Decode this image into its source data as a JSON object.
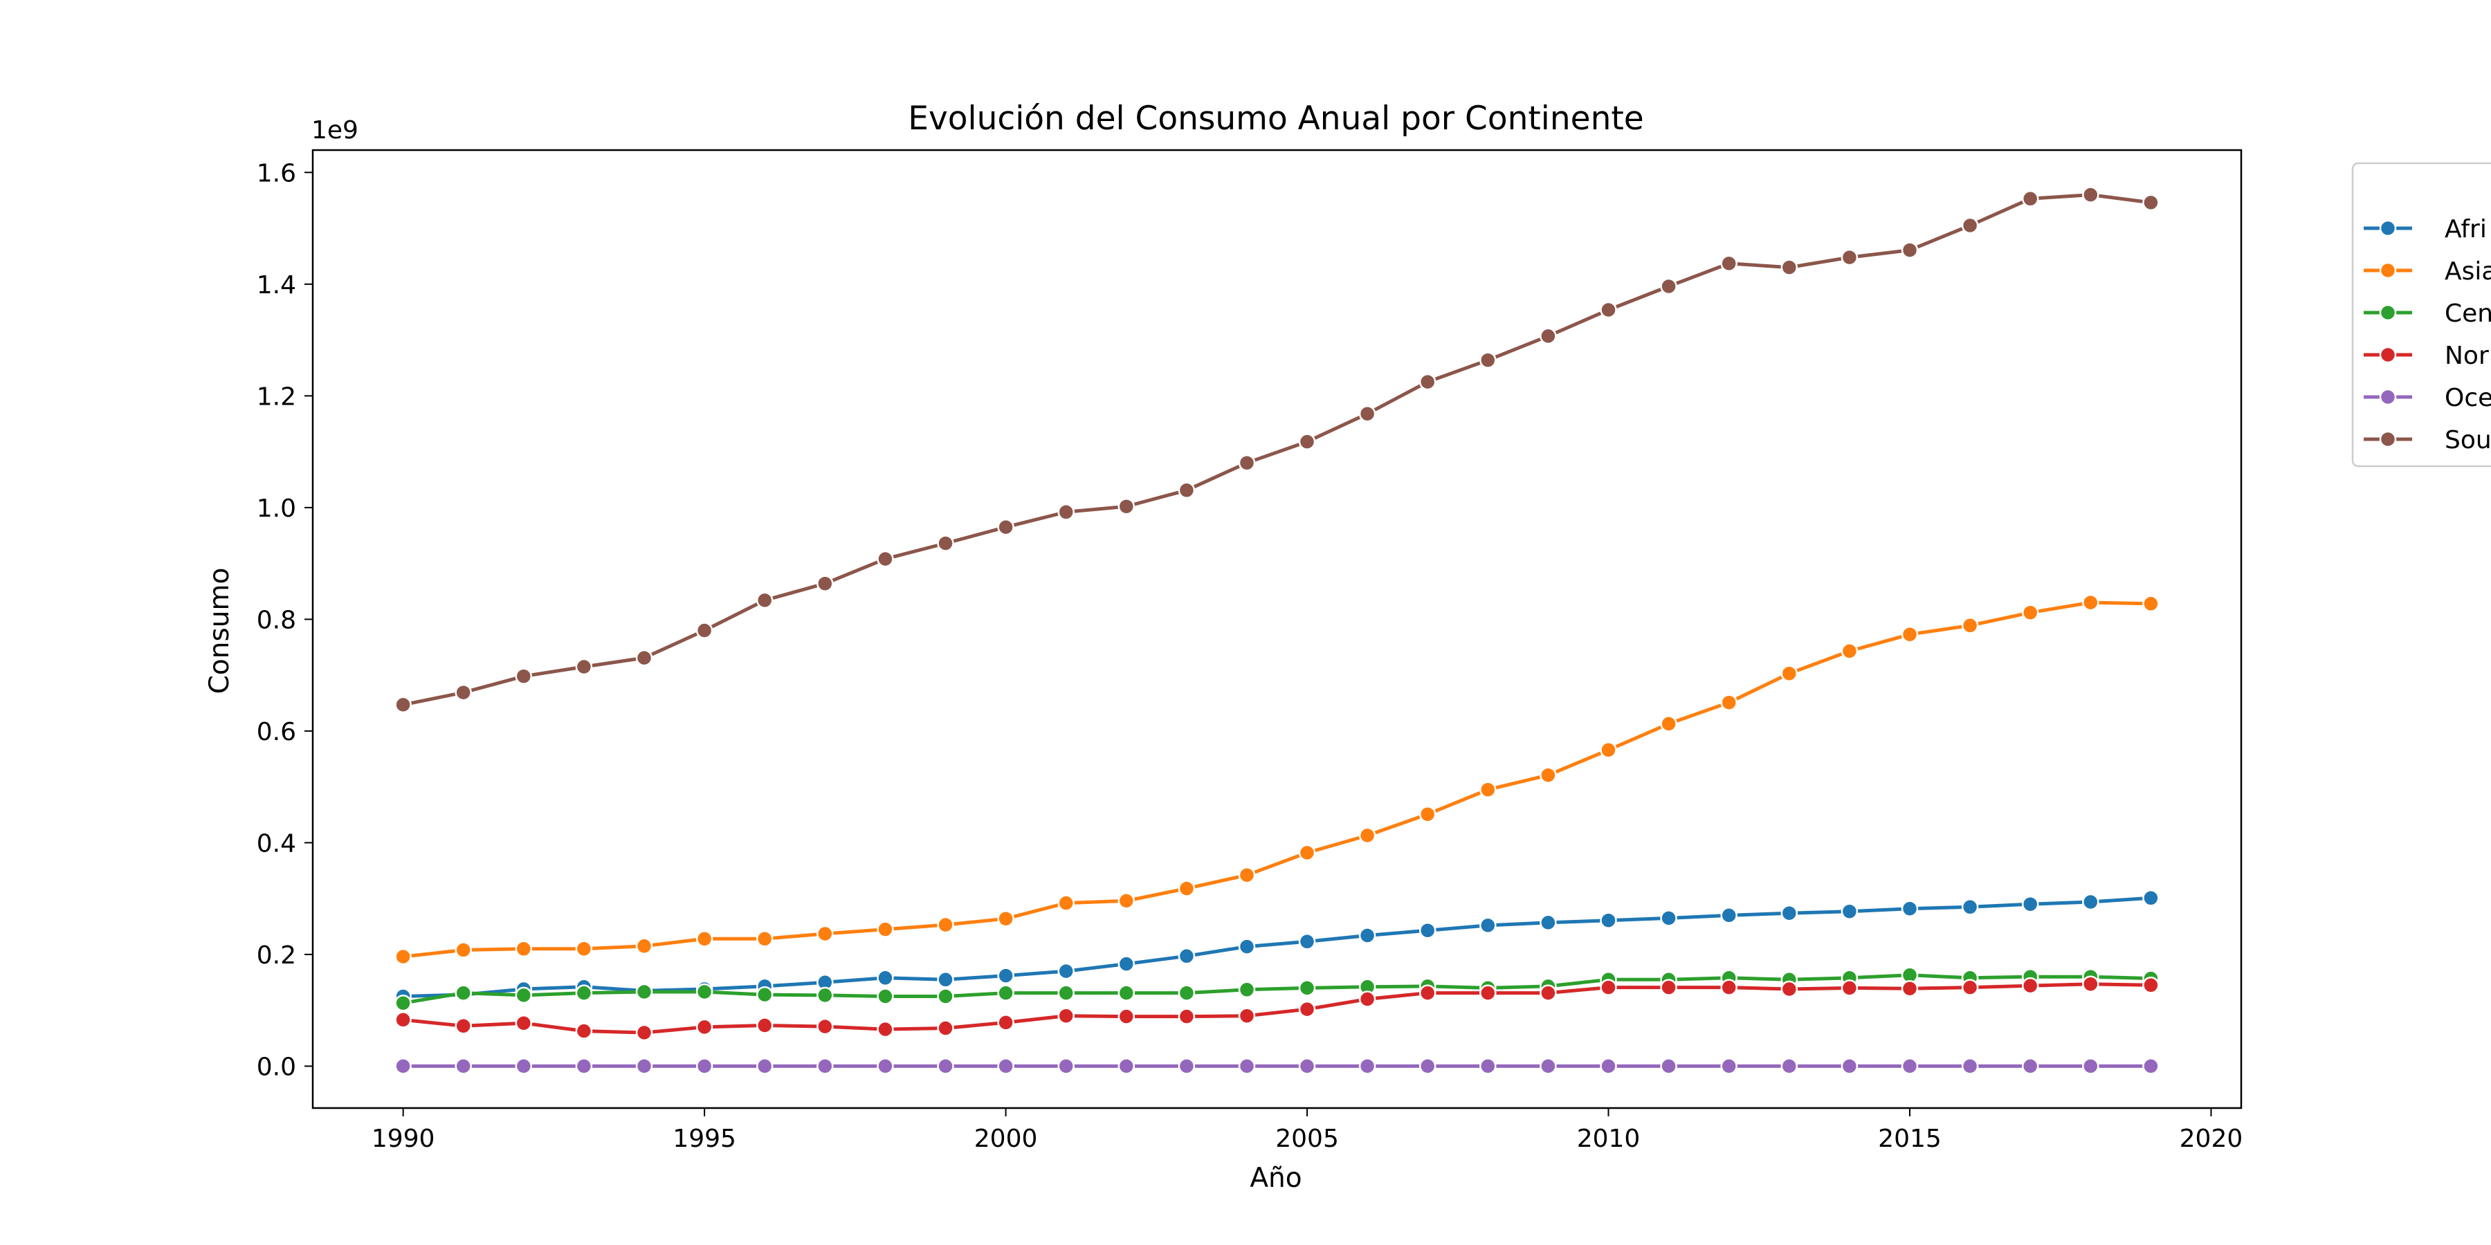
{
  "chart_data": {
    "type": "line",
    "title": "Evolución del Consumo Anual por Continente",
    "xlabel": "Año",
    "ylabel": "Consumo",
    "y_offset_text": "1e9",
    "xlim": [
      1988.5,
      2020.5
    ],
    "ylim": [
      -0.075,
      1.64
    ],
    "xticks": [
      1990,
      1995,
      2000,
      2005,
      2010,
      2015,
      2020
    ],
    "yticks": [
      0.0,
      0.2,
      0.4,
      0.6,
      0.8,
      1.0,
      1.2,
      1.4,
      1.6
    ],
    "ytick_labels": [
      "0.0",
      "0.2",
      "0.4",
      "0.6",
      "0.8",
      "1.0",
      "1.2",
      "1.4",
      "1.6"
    ],
    "grid": false,
    "legend_position": "right, outside plot (clipped)",
    "x": [
      1990,
      1991,
      1992,
      1993,
      1994,
      1995,
      1996,
      1997,
      1998,
      1999,
      2000,
      2001,
      2002,
      2003,
      2004,
      2005,
      2006,
      2007,
      2008,
      2009,
      2010,
      2011,
      2012,
      2013,
      2014,
      2015,
      2016,
      2017,
      2018,
      2019
    ],
    "series": [
      {
        "name": "Afri",
        "color": "#1f77b4",
        "values": [
          0.125,
          0.128,
          0.138,
          0.142,
          0.135,
          0.138,
          0.143,
          0.15,
          0.158,
          0.155,
          0.162,
          0.17,
          0.183,
          0.197,
          0.214,
          0.223,
          0.234,
          0.243,
          0.252,
          0.257,
          0.261,
          0.265,
          0.27,
          0.274,
          0.277,
          0.282,
          0.285,
          0.29,
          0.294,
          0.301
        ]
      },
      {
        "name": "Asia",
        "color": "#ff7f0e",
        "values": [
          0.196,
          0.208,
          0.21,
          0.21,
          0.215,
          0.228,
          0.228,
          0.237,
          0.245,
          0.253,
          0.264,
          0.292,
          0.296,
          0.318,
          0.342,
          0.382,
          0.413,
          0.451,
          0.495,
          0.521,
          0.566,
          0.613,
          0.651,
          0.703,
          0.743,
          0.773,
          0.789,
          0.812,
          0.83,
          0.828
        ]
      },
      {
        "name": "Cen",
        "color": "#2ca02c",
        "values": [
          0.113,
          0.131,
          0.127,
          0.131,
          0.133,
          0.133,
          0.128,
          0.127,
          0.125,
          0.125,
          0.131,
          0.131,
          0.131,
          0.131,
          0.137,
          0.14,
          0.142,
          0.143,
          0.14,
          0.143,
          0.155,
          0.155,
          0.158,
          0.155,
          0.158,
          0.163,
          0.158,
          0.16,
          0.16,
          0.157
        ]
      },
      {
        "name": "Nor",
        "color": "#d62728",
        "values": [
          0.083,
          0.072,
          0.077,
          0.063,
          0.06,
          0.07,
          0.073,
          0.071,
          0.066,
          0.068,
          0.078,
          0.09,
          0.089,
          0.089,
          0.09,
          0.102,
          0.12,
          0.131,
          0.131,
          0.131,
          0.141,
          0.141,
          0.141,
          0.138,
          0.14,
          0.139,
          0.141,
          0.144,
          0.147,
          0.145
        ]
      },
      {
        "name": "Oce",
        "color": "#9467bd",
        "values": [
          0,
          0,
          0,
          0,
          0,
          0,
          0,
          0,
          0,
          0,
          0,
          0,
          0,
          0,
          0,
          0,
          0,
          0,
          0,
          0,
          0,
          0,
          0,
          0,
          0,
          0,
          0,
          0,
          0,
          0
        ]
      },
      {
        "name": "Sou",
        "color": "#8c564b",
        "values": [
          0.647,
          0.669,
          0.698,
          0.715,
          0.731,
          0.78,
          0.834,
          0.864,
          0.908,
          0.936,
          0.965,
          0.992,
          1.002,
          1.031,
          1.08,
          1.118,
          1.168,
          1.225,
          1.264,
          1.307,
          1.354,
          1.396,
          1.437,
          1.43,
          1.448,
          1.461,
          1.505,
          1.553,
          1.56,
          1.546
        ]
      }
    ]
  }
}
